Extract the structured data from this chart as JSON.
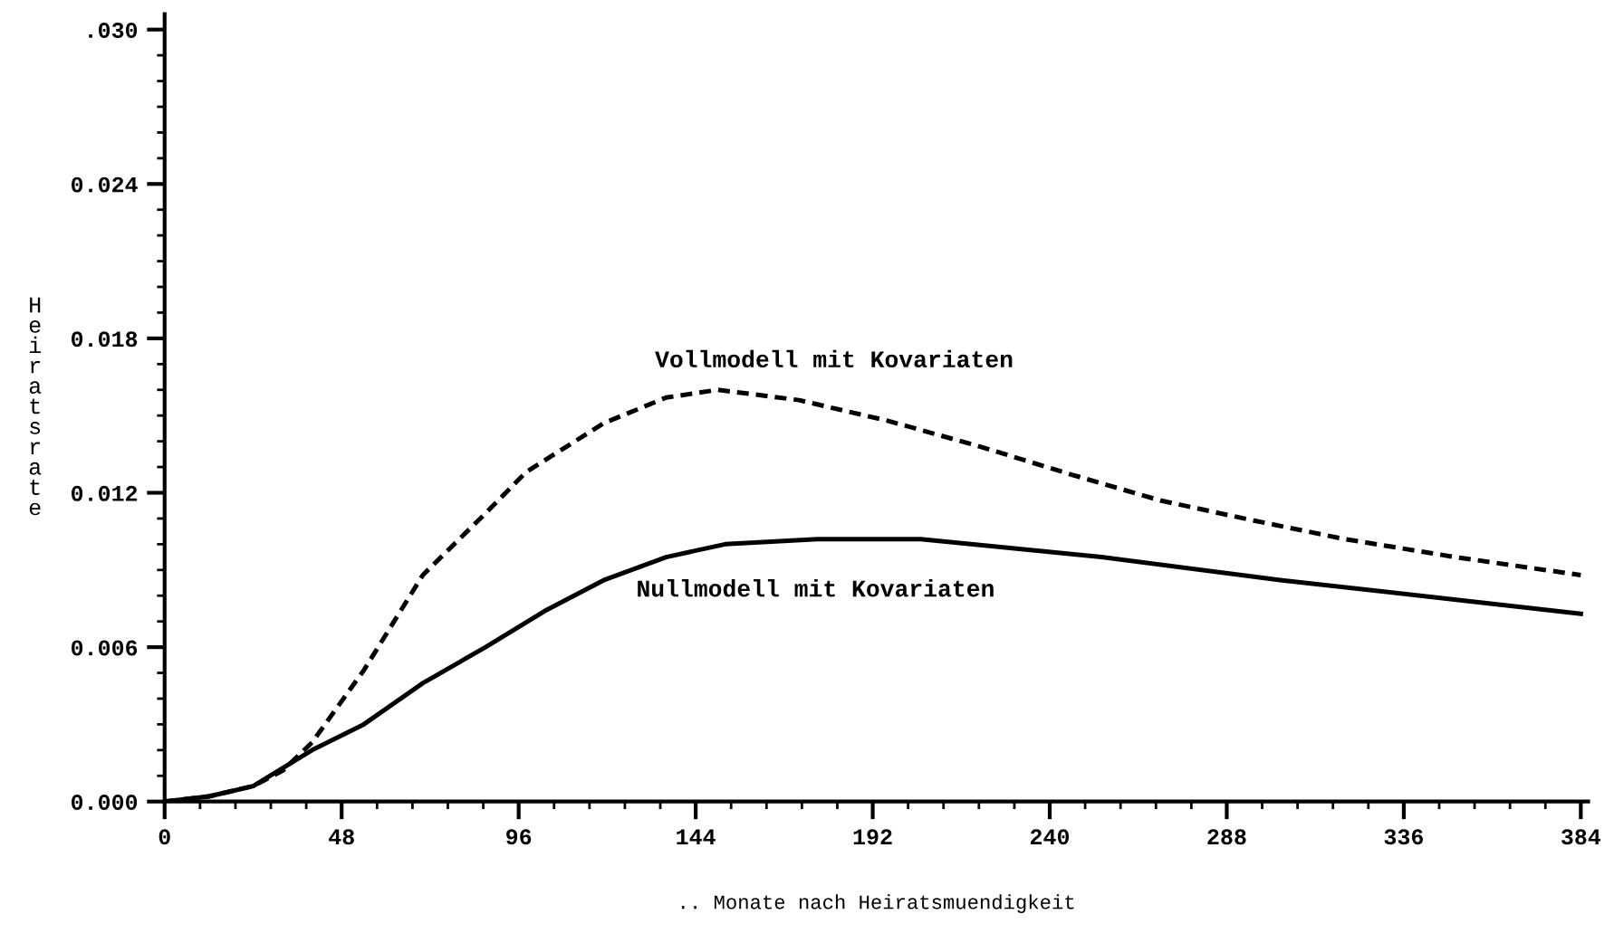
{
  "chart_data": {
    "type": "line",
    "xlabel": ".. Monate nach Heiratsmuendigkeit",
    "ylabel": "Heiratsrate",
    "xlim": [
      0,
      386
    ],
    "xticks": [
      0,
      48,
      96,
      144,
      192,
      240,
      288,
      336,
      384
    ],
    "ylim": [
      0,
      0.0306
    ],
    "yticks": [
      {
        "value": 0,
        "label": "0.000"
      },
      {
        "value": 0.006,
        "label": "0.006"
      },
      {
        "value": 0.012,
        "label": "0.012"
      },
      {
        "value": 0.018,
        "label": "0.018"
      },
      {
        "value": 0.024,
        "label": "0.024"
      },
      {
        "value": 0.03,
        "label": ".030"
      }
    ],
    "grid": false,
    "legend": false,
    "marker": "none",
    "series": [
      {
        "name": "Vollmodell mit Kovariaten",
        "color": "#000000",
        "line_style": "dashed",
        "x": [
          0,
          12,
          24,
          32,
          40,
          54,
          70,
          87,
          98,
          119,
          136,
          150,
          172,
          196,
          221,
          246,
          270,
          296,
          320,
          350,
          384
        ],
        "values": [
          0,
          0.0002,
          0.0006,
          0.0012,
          0.0023,
          0.0051,
          0.0088,
          0.0112,
          0.0128,
          0.0147,
          0.0157,
          0.016,
          0.0156,
          0.0148,
          0.0138,
          0.0127,
          0.0117,
          0.0109,
          0.0102,
          0.0095,
          0.0088
        ]
      },
      {
        "name": "Nullmodell mit Kovariaten",
        "color": "#000000",
        "line_style": "solid",
        "x": [
          0,
          12,
          24,
          40,
          54,
          70,
          87,
          103,
          119,
          136,
          152,
          177,
          205,
          254,
          303,
          353,
          384
        ],
        "values": [
          0,
          0.0002,
          0.0006,
          0.002,
          0.003,
          0.0046,
          0.006,
          0.0074,
          0.0086,
          0.0095,
          0.01,
          0.0102,
          0.0102,
          0.0095,
          0.0086,
          0.0078,
          0.0073
        ]
      }
    ]
  }
}
